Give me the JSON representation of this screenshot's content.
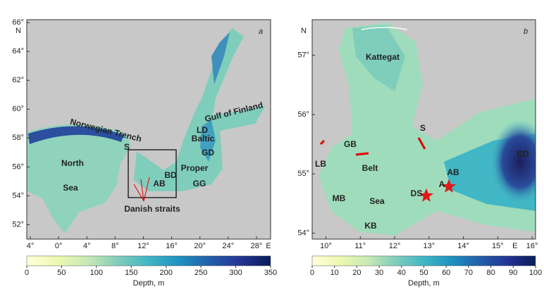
{
  "panels": [
    {
      "letter": "a",
      "lat_unit": "N",
      "lon_unit": "E",
      "lat_lim": [
        51,
        66.2
      ],
      "lon_lim": [
        -4.5,
        30
      ],
      "lat_ticks": [
        {
          "value": 52,
          "label": "52°"
        },
        {
          "value": 54,
          "label": "54°"
        },
        {
          "value": 56,
          "label": "56°"
        },
        {
          "value": 58,
          "label": "58°"
        },
        {
          "value": 60,
          "label": "60°"
        },
        {
          "value": 62,
          "label": "62°"
        },
        {
          "value": 64,
          "label": "64°"
        },
        {
          "value": 66,
          "label": "66°"
        }
      ],
      "lon_ticks": [
        {
          "value": -4,
          "label": "4°"
        },
        {
          "value": 0,
          "label": "0°"
        },
        {
          "value": 4,
          "label": "4°"
        },
        {
          "value": 8,
          "label": "8°"
        },
        {
          "value": 12,
          "label": "12°"
        },
        {
          "value": 16,
          "label": "16°"
        },
        {
          "value": 20,
          "label": "20°"
        },
        {
          "value": 24,
          "label": "24°"
        },
        {
          "value": 28,
          "label": "28°"
        }
      ],
      "labels": [
        "North",
        "Sea",
        "Norwegian Trench",
        "Baltic",
        "Proper",
        "Gulf of Finland",
        "LD",
        "GD",
        "GG",
        "BD",
        "AB",
        "Danish straits",
        "S"
      ],
      "colorbar": {
        "label": "Depth, m",
        "lim": [
          0,
          350
        ],
        "ticks": [
          0,
          50,
          100,
          150,
          200,
          250,
          300,
          350
        ]
      }
    },
    {
      "letter": "b",
      "lat_unit": "N",
      "lon_unit": "E",
      "lat_lim": [
        53.9,
        57.6
      ],
      "lon_lim": [
        9.6,
        16.1
      ],
      "lat_ticks": [
        {
          "value": 54,
          "label": "54°"
        },
        {
          "value": 55,
          "label": "55°"
        },
        {
          "value": 56,
          "label": "56°"
        },
        {
          "value": 57,
          "label": "57°"
        }
      ],
      "lon_ticks": [
        {
          "value": 10,
          "label": "10°"
        },
        {
          "value": 11,
          "label": "11°"
        },
        {
          "value": 12,
          "label": "12°"
        },
        {
          "value": 13,
          "label": "13°"
        },
        {
          "value": 14,
          "label": "14°"
        },
        {
          "value": 15,
          "label": "15°"
        },
        {
          "value": 16,
          "label": "16°"
        }
      ],
      "labels": [
        "Kattegat",
        "GB",
        "Belt",
        "LB",
        "MB",
        "Sea",
        "KB",
        "S",
        "AB",
        "BD",
        "DS",
        "A"
      ],
      "colorbar": {
        "label": "Depth, m",
        "lim": [
          0,
          100
        ],
        "ticks": [
          0,
          10,
          20,
          30,
          40,
          50,
          60,
          70,
          80,
          90,
          100
        ]
      }
    }
  ],
  "colormap": [
    "#ffffd9",
    "#edf8b1",
    "#c7e9b4",
    "#7fcdbb",
    "#41b6c4",
    "#1d91c0",
    "#225ea8",
    "#253494",
    "#081d58"
  ]
}
